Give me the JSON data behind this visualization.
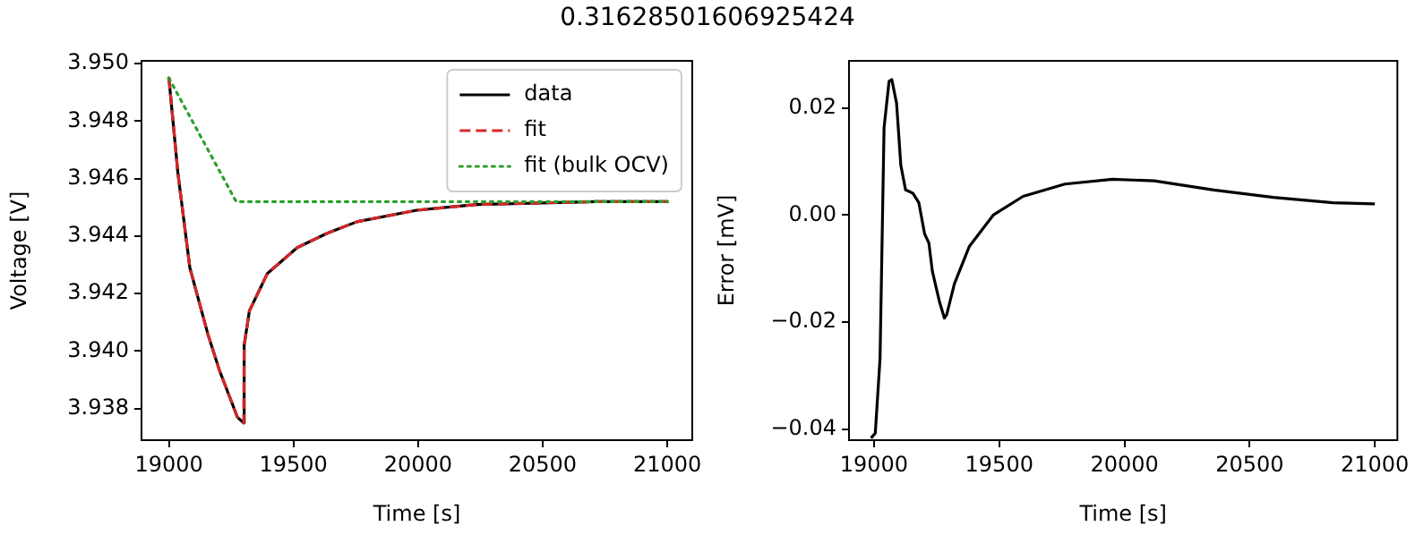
{
  "chart_data": [
    {
      "type": "line",
      "title": "0.31628501606925424",
      "xlabel": "Time [s]",
      "ylabel": "Voltage [V]",
      "xlim": [
        18890,
        21100
      ],
      "xticks": [
        19000,
        19500,
        20000,
        20500,
        21000
      ],
      "ylim": [
        3.9369,
        3.9501
      ],
      "yticks": [
        {
          "value": 3.938,
          "label": "3.938"
        },
        {
          "value": 3.94,
          "label": "3.940"
        },
        {
          "value": 3.942,
          "label": "3.942"
        },
        {
          "value": 3.944,
          "label": "3.944"
        },
        {
          "value": 3.946,
          "label": "3.946"
        },
        {
          "value": 3.948,
          "label": "3.948"
        },
        {
          "value": 3.95,
          "label": "3.950"
        }
      ],
      "grid": false,
      "legend": "top right",
      "marker": "none",
      "series": [
        {
          "name": "data",
          "color": "#000000",
          "line_style": "solid",
          "x": [
            19000,
            19036,
            19084,
            19156,
            19204,
            19275,
            19300,
            19302,
            19323,
            19395,
            19515,
            19635,
            19754,
            19994,
            20234,
            20713,
            21000
          ],
          "values": [
            3.9495,
            3.9462,
            3.9429,
            3.9406,
            3.9393,
            3.9377,
            3.9375,
            3.9402,
            3.9414,
            3.9427,
            3.9436,
            3.9441,
            3.9445,
            3.9449,
            3.9451,
            3.9452,
            3.9452
          ]
        },
        {
          "name": "fit",
          "color": "#d62728",
          "line_style": "dashed",
          "x": [
            19000,
            19036,
            19084,
            19156,
            19204,
            19275,
            19300,
            19302,
            19323,
            19395,
            19515,
            19635,
            19754,
            19994,
            20234,
            20713,
            21000
          ],
          "values": [
            3.9495,
            3.9462,
            3.9429,
            3.9406,
            3.9393,
            3.9377,
            3.9375,
            3.9402,
            3.9414,
            3.9427,
            3.9436,
            3.9441,
            3.9445,
            3.9449,
            3.9451,
            3.9452,
            3.9452
          ]
        },
        {
          "name": "fit (bulk OCV)",
          "color": "#2ca02c",
          "line_style": "dotted",
          "x": [
            19000,
            19270,
            21000
          ],
          "values": [
            3.9495,
            3.9452,
            3.9452
          ]
        }
      ]
    },
    {
      "type": "line",
      "xlabel": "Time [s]",
      "ylabel": "Error [mV]",
      "xlim": [
        18900,
        21090
      ],
      "xticks": [
        19000,
        19500,
        20000,
        20500,
        21000
      ],
      "ylim": [
        -0.042,
        0.0288
      ],
      "yticks": [
        {
          "value": -0.04,
          "label": "−0.04"
        },
        {
          "value": -0.02,
          "label": "−0.02"
        },
        {
          "value": 0,
          "label": "0.00"
        },
        {
          "value": 0.02,
          "label": "0.02"
        }
      ],
      "grid": false,
      "legend": false,
      "marker": "none",
      "series": [
        {
          "color": "#000000",
          "line_style": "solid",
          "x": [
            18988,
            19005,
            19024,
            19040,
            19060,
            19071,
            19090,
            19107,
            19126,
            19155,
            19179,
            19202,
            19219,
            19233,
            19262,
            19281,
            19290,
            19321,
            19381,
            19476,
            19595,
            19762,
            19952,
            20119,
            20357,
            20595,
            20833,
            21000
          ],
          "values": [
            -0.0416,
            -0.0407,
            -0.0267,
            0.0163,
            0.025,
            0.0253,
            0.0209,
            0.0093,
            0.0047,
            0.0041,
            0.0023,
            -0.0035,
            -0.0052,
            -0.0105,
            -0.0163,
            -0.0192,
            -0.0186,
            -0.0128,
            -0.0058,
            0.0,
            0.0035,
            0.0058,
            0.0067,
            0.0064,
            0.0047,
            0.0033,
            0.0023,
            0.0021
          ]
        }
      ]
    }
  ]
}
